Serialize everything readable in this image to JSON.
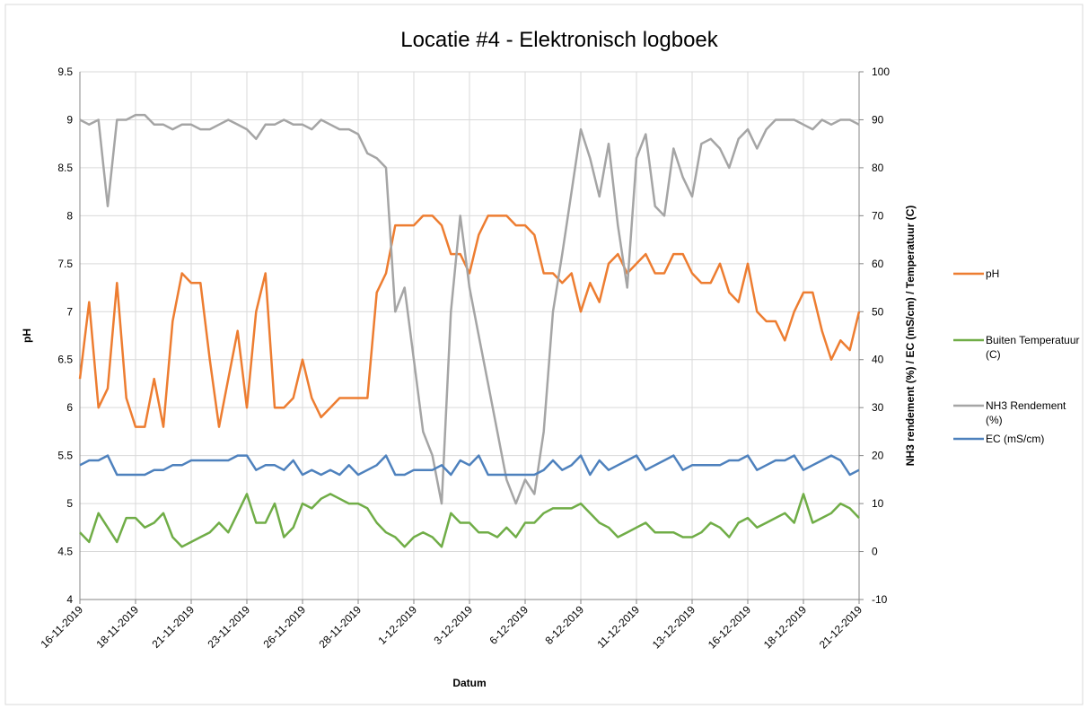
{
  "chart_data": {
    "type": "line",
    "title": "Locatie #4 - Elektronisch logboek",
    "x_label": "Datum",
    "y_label": "pH",
    "y2_label": "NH3 rendement (%) / EC (mS/cm) / Temperatuur (C)",
    "categories": [
      "16-11-2019",
      null,
      null,
      null,
      null,
      null,
      "18-11-2019",
      null,
      null,
      null,
      null,
      null,
      "21-11-2019",
      null,
      null,
      null,
      null,
      null,
      "23-11-2019",
      null,
      null,
      null,
      null,
      null,
      "26-11-2019",
      null,
      null,
      null,
      null,
      null,
      "28-11-2019",
      null,
      null,
      null,
      null,
      null,
      "1-12-2019",
      null,
      null,
      null,
      null,
      null,
      "3-12-2019",
      null,
      null,
      null,
      null,
      null,
      "6-12-2019",
      null,
      null,
      null,
      null,
      null,
      "8-12-2019",
      null,
      null,
      null,
      null,
      null,
      "11-12-2019",
      null,
      null,
      null,
      null,
      null,
      "13-12-2019",
      null,
      null,
      null,
      null,
      null,
      "16-12-2019",
      null,
      null,
      null,
      null,
      null,
      "18-12-2019",
      null,
      null,
      null,
      null,
      null,
      "21-12-2019"
    ],
    "ylim": [
      4,
      9.5
    ],
    "yticks": [
      4,
      4.5,
      5,
      5.5,
      6,
      6.5,
      7,
      7.5,
      8,
      8.5,
      9,
      9.5
    ],
    "y2lim": [
      -10,
      100
    ],
    "y2ticks": [
      -10,
      0,
      10,
      20,
      30,
      40,
      50,
      60,
      70,
      80,
      90,
      100
    ],
    "grid": true,
    "legend": "right",
    "series": [
      {
        "name": "pH",
        "color": "#ed7d31",
        "values": [
          6.3,
          7.1,
          6.0,
          6.2,
          7.3,
          6.1,
          5.8,
          5.8,
          6.3,
          5.8,
          6.9,
          7.4,
          7.3,
          7.3,
          6.5,
          5.8,
          6.3,
          6.8,
          6.0,
          7.0,
          7.4,
          6.0,
          6.0,
          6.1,
          6.5,
          6.1,
          5.9,
          6.0,
          6.1,
          6.1,
          6.1,
          6.1,
          7.2,
          7.4,
          7.9,
          7.9,
          7.9,
          8.0,
          8.0,
          7.9,
          7.6,
          7.6,
          7.4,
          7.8,
          8.0,
          8.0,
          8.0,
          7.9,
          7.9,
          7.8,
          7.4,
          7.4,
          7.3,
          7.4,
          7.0,
          7.3,
          7.1,
          7.5,
          7.6,
          7.4,
          7.5,
          7.6,
          7.4,
          7.4,
          7.6,
          7.6,
          7.4,
          7.3,
          7.3,
          7.5,
          7.2,
          7.1,
          7.5,
          7.0,
          6.9,
          6.9,
          6.7,
          7.0,
          7.2,
          7.2,
          6.8,
          6.5,
          6.7,
          6.6,
          7.0
        ]
      },
      {
        "name": "Buiten Temperatuur (C)",
        "color": "#70ad47",
        "axis": "y2",
        "values": [
          4,
          2,
          8,
          5,
          2,
          7,
          7,
          5,
          6,
          8,
          3,
          1,
          2,
          3,
          4,
          6,
          4,
          8,
          12,
          6,
          6,
          10,
          3,
          5,
          10,
          9,
          11,
          12,
          11,
          10,
          10,
          9,
          6,
          4,
          3,
          1,
          3,
          4,
          3,
          1,
          8,
          6,
          6,
          4,
          4,
          3,
          5,
          3,
          6,
          6,
          8,
          9,
          9,
          9,
          10,
          8,
          6,
          5,
          3,
          4,
          5,
          6,
          4,
          4,
          4,
          3,
          3,
          4,
          6,
          5,
          3,
          6,
          7,
          5,
          6,
          7,
          8,
          6,
          12,
          6,
          7,
          8,
          10,
          9,
          7
        ]
      },
      {
        "name": "NH3 Rendement (%)",
        "color": "#a5a5a5",
        "axis": "y2",
        "values": [
          90,
          89,
          90,
          72,
          90,
          90,
          91,
          91,
          89,
          89,
          88,
          89,
          89,
          88,
          88,
          89,
          90,
          89,
          88,
          86,
          89,
          89,
          90,
          89,
          89,
          88,
          90,
          89,
          88,
          88,
          87,
          83,
          82,
          80,
          50,
          55,
          40,
          25,
          20,
          10,
          50,
          70,
          55,
          45,
          35,
          25,
          15,
          10,
          15,
          12,
          25,
          50,
          62,
          75,
          88,
          82,
          74,
          85,
          68,
          55,
          82,
          87,
          72,
          70,
          84,
          78,
          74,
          85,
          86,
          84,
          80,
          86,
          88,
          84,
          88,
          90,
          90,
          90,
          89,
          88,
          90,
          89,
          90,
          90,
          89
        ]
      },
      {
        "name": "EC (mS/cm)",
        "color": "#4e81bd",
        "axis": "y2",
        "values": [
          18,
          19,
          19,
          20,
          16,
          16,
          16,
          16,
          17,
          17,
          18,
          18,
          19,
          19,
          19,
          19,
          19,
          20,
          20,
          17,
          18,
          18,
          17,
          19,
          16,
          17,
          16,
          17,
          16,
          18,
          16,
          17,
          18,
          20,
          16,
          16,
          17,
          17,
          17,
          18,
          16,
          19,
          18,
          20,
          16,
          16,
          16,
          16,
          16,
          16,
          17,
          19,
          17,
          18,
          20,
          16,
          19,
          17,
          18,
          19,
          20,
          17,
          18,
          19,
          20,
          17,
          18,
          18,
          18,
          18,
          19,
          19,
          20,
          17,
          18,
          19,
          19,
          20,
          17,
          18,
          19,
          20,
          19,
          16,
          17
        ]
      }
    ]
  }
}
